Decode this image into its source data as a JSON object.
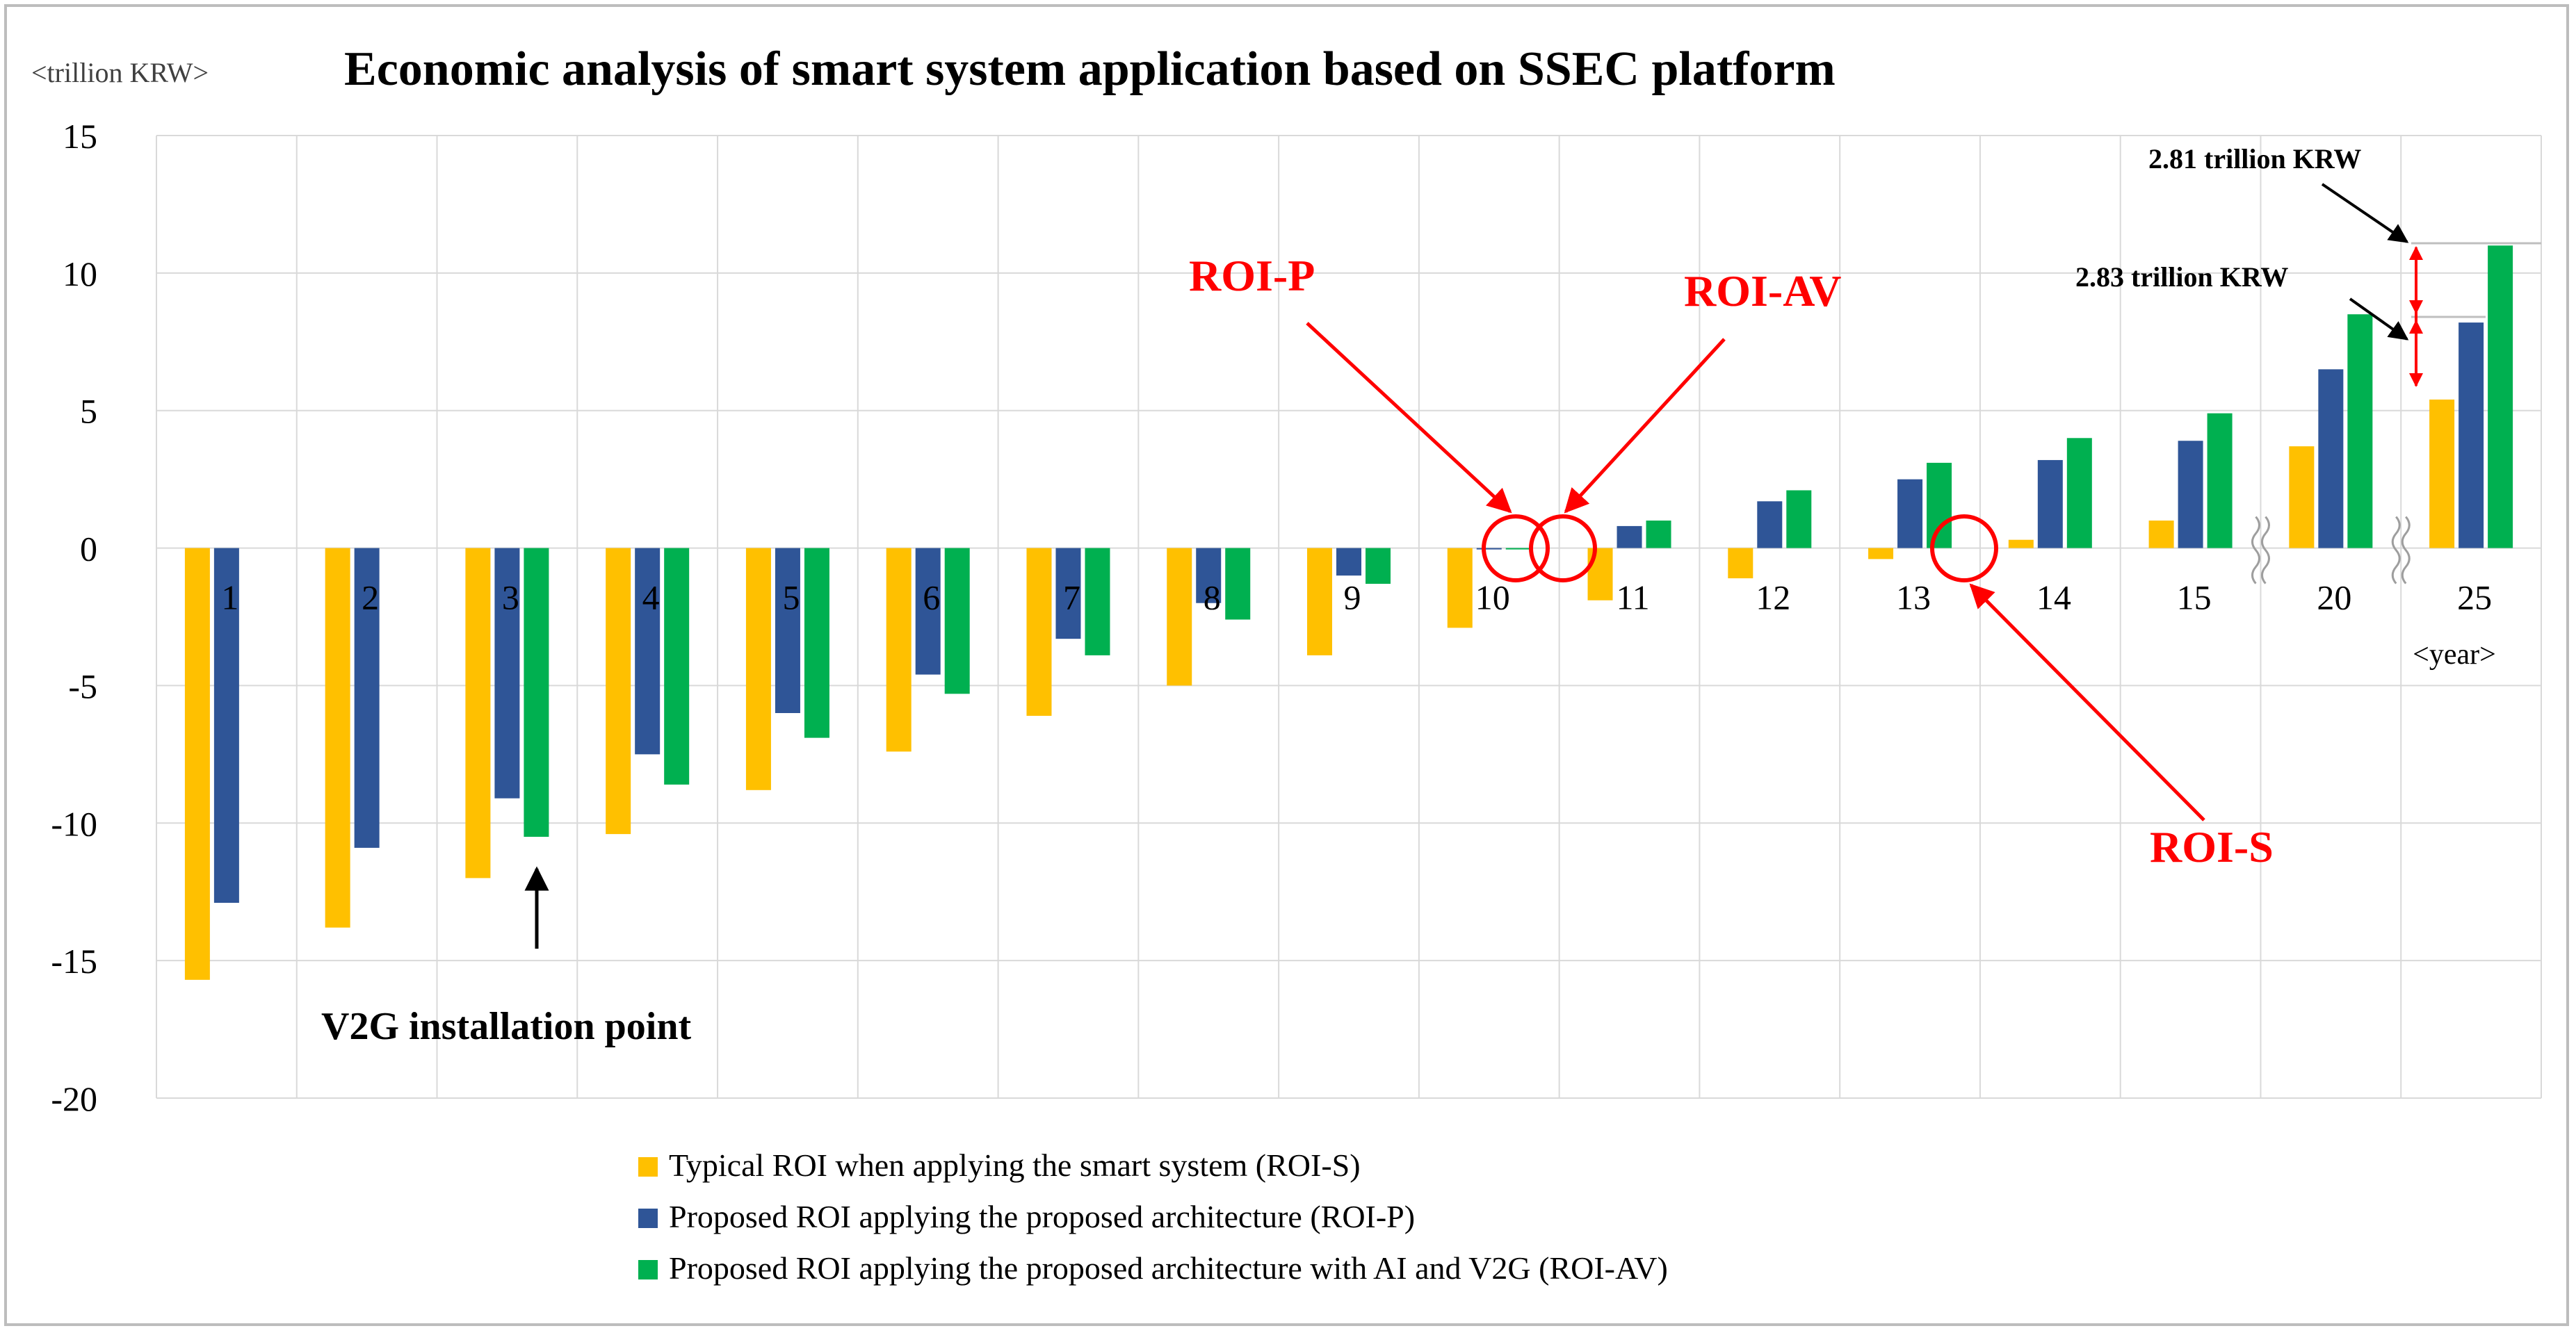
{
  "chart_data": {
    "type": "bar",
    "title": "Economic analysis of smart system application based on SSEC platform",
    "ylabel": "<trillion KRW>",
    "xlabel": "<year>",
    "ylim": [
      -20,
      15
    ],
    "yticks": [
      15,
      10,
      5,
      0,
      -5,
      -10,
      -15,
      -20
    ],
    "categories": [
      "1",
      "2",
      "3",
      "4",
      "5",
      "6",
      "7",
      "8",
      "9",
      "10",
      "11",
      "12",
      "13",
      "14",
      "15",
      "20",
      "25"
    ],
    "series": [
      {
        "name": "Typical ROI when applying the smart system (ROI-S)",
        "color": "#FFC000",
        "values": [
          -15.7,
          -13.8,
          -12.0,
          -10.4,
          -8.8,
          -7.4,
          -6.1,
          -5.0,
          -3.9,
          -2.9,
          -1.9,
          -1.1,
          -0.4,
          0.3,
          1.0,
          3.7,
          5.4
        ]
      },
      {
        "name": "Proposed ROI applying the proposed architecture (ROI-P)",
        "color": "#2F5597",
        "values": [
          -12.9,
          -10.9,
          -9.1,
          -7.5,
          -6.0,
          -4.6,
          -3.3,
          -2.0,
          -1.0,
          -0.05,
          0.8,
          1.7,
          2.5,
          3.2,
          3.9,
          6.5,
          8.2
        ]
      },
      {
        "name": "Proposed ROI applying the proposed architecture with AI and V2G (ROI-AV)",
        "color": "#00B050",
        "values": [
          null,
          null,
          -10.5,
          -8.6,
          -6.9,
          -5.3,
          -3.9,
          -2.6,
          -1.3,
          -0.05,
          1.0,
          2.1,
          3.1,
          4.0,
          4.9,
          8.5,
          11.0
        ]
      }
    ],
    "annotations": {
      "v2g": "V2G installation point",
      "roi_p": "ROI-P",
      "roi_av": "ROI-AV",
      "roi_s": "ROI-S",
      "diff_1": "2.81 trillion KRW",
      "diff_2": "2.83 trillion KRW"
    }
  }
}
